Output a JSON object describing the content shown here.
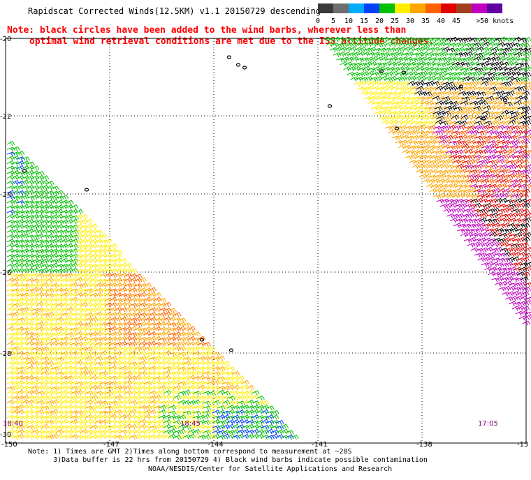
{
  "title": "Rapidscat Corrected Winds(12.5KM) v1.1 20150729 descending",
  "note": {
    "line1": "Note: black circles have been added to the wind barbs, wherever less than",
    "line2": "optimal wind retrieval conditions are met due to the ISS altitude changes."
  },
  "colorbar": {
    "labels": [
      "0",
      "5",
      "10",
      "15",
      "20",
      "25",
      "30",
      "35",
      "40",
      "45",
      ">50 knots"
    ],
    "colors": [
      "#3a3a3a",
      "#6e6e6e",
      "#00aaff",
      "#0040ff",
      "#00c000",
      "#ffee00",
      "#ffa500",
      "#ff6000",
      "#e00000",
      "#a04020",
      "#c000c0",
      "#6000a0"
    ]
  },
  "map": {
    "lat_labels": [
      "-20",
      "-22",
      "-24",
      "-26",
      "-28",
      "-30"
    ],
    "lon_labels": [
      "-150",
      "-147",
      "-144",
      "-141",
      "-138",
      "-13"
    ],
    "time_labels": [
      "18:40",
      "18:45",
      "17:05"
    ]
  },
  "footnote": {
    "line1": "Note: 1) Times are GMT 2)Times along bottom correspond to measurement at ~20S",
    "line2": "      3)Data buffer is 22 hrs from 20150729 4) Black wind barbs indicate possible contamination"
  },
  "credit": "NOAA/NESDIS/Center for Satellite Applications and Research"
}
